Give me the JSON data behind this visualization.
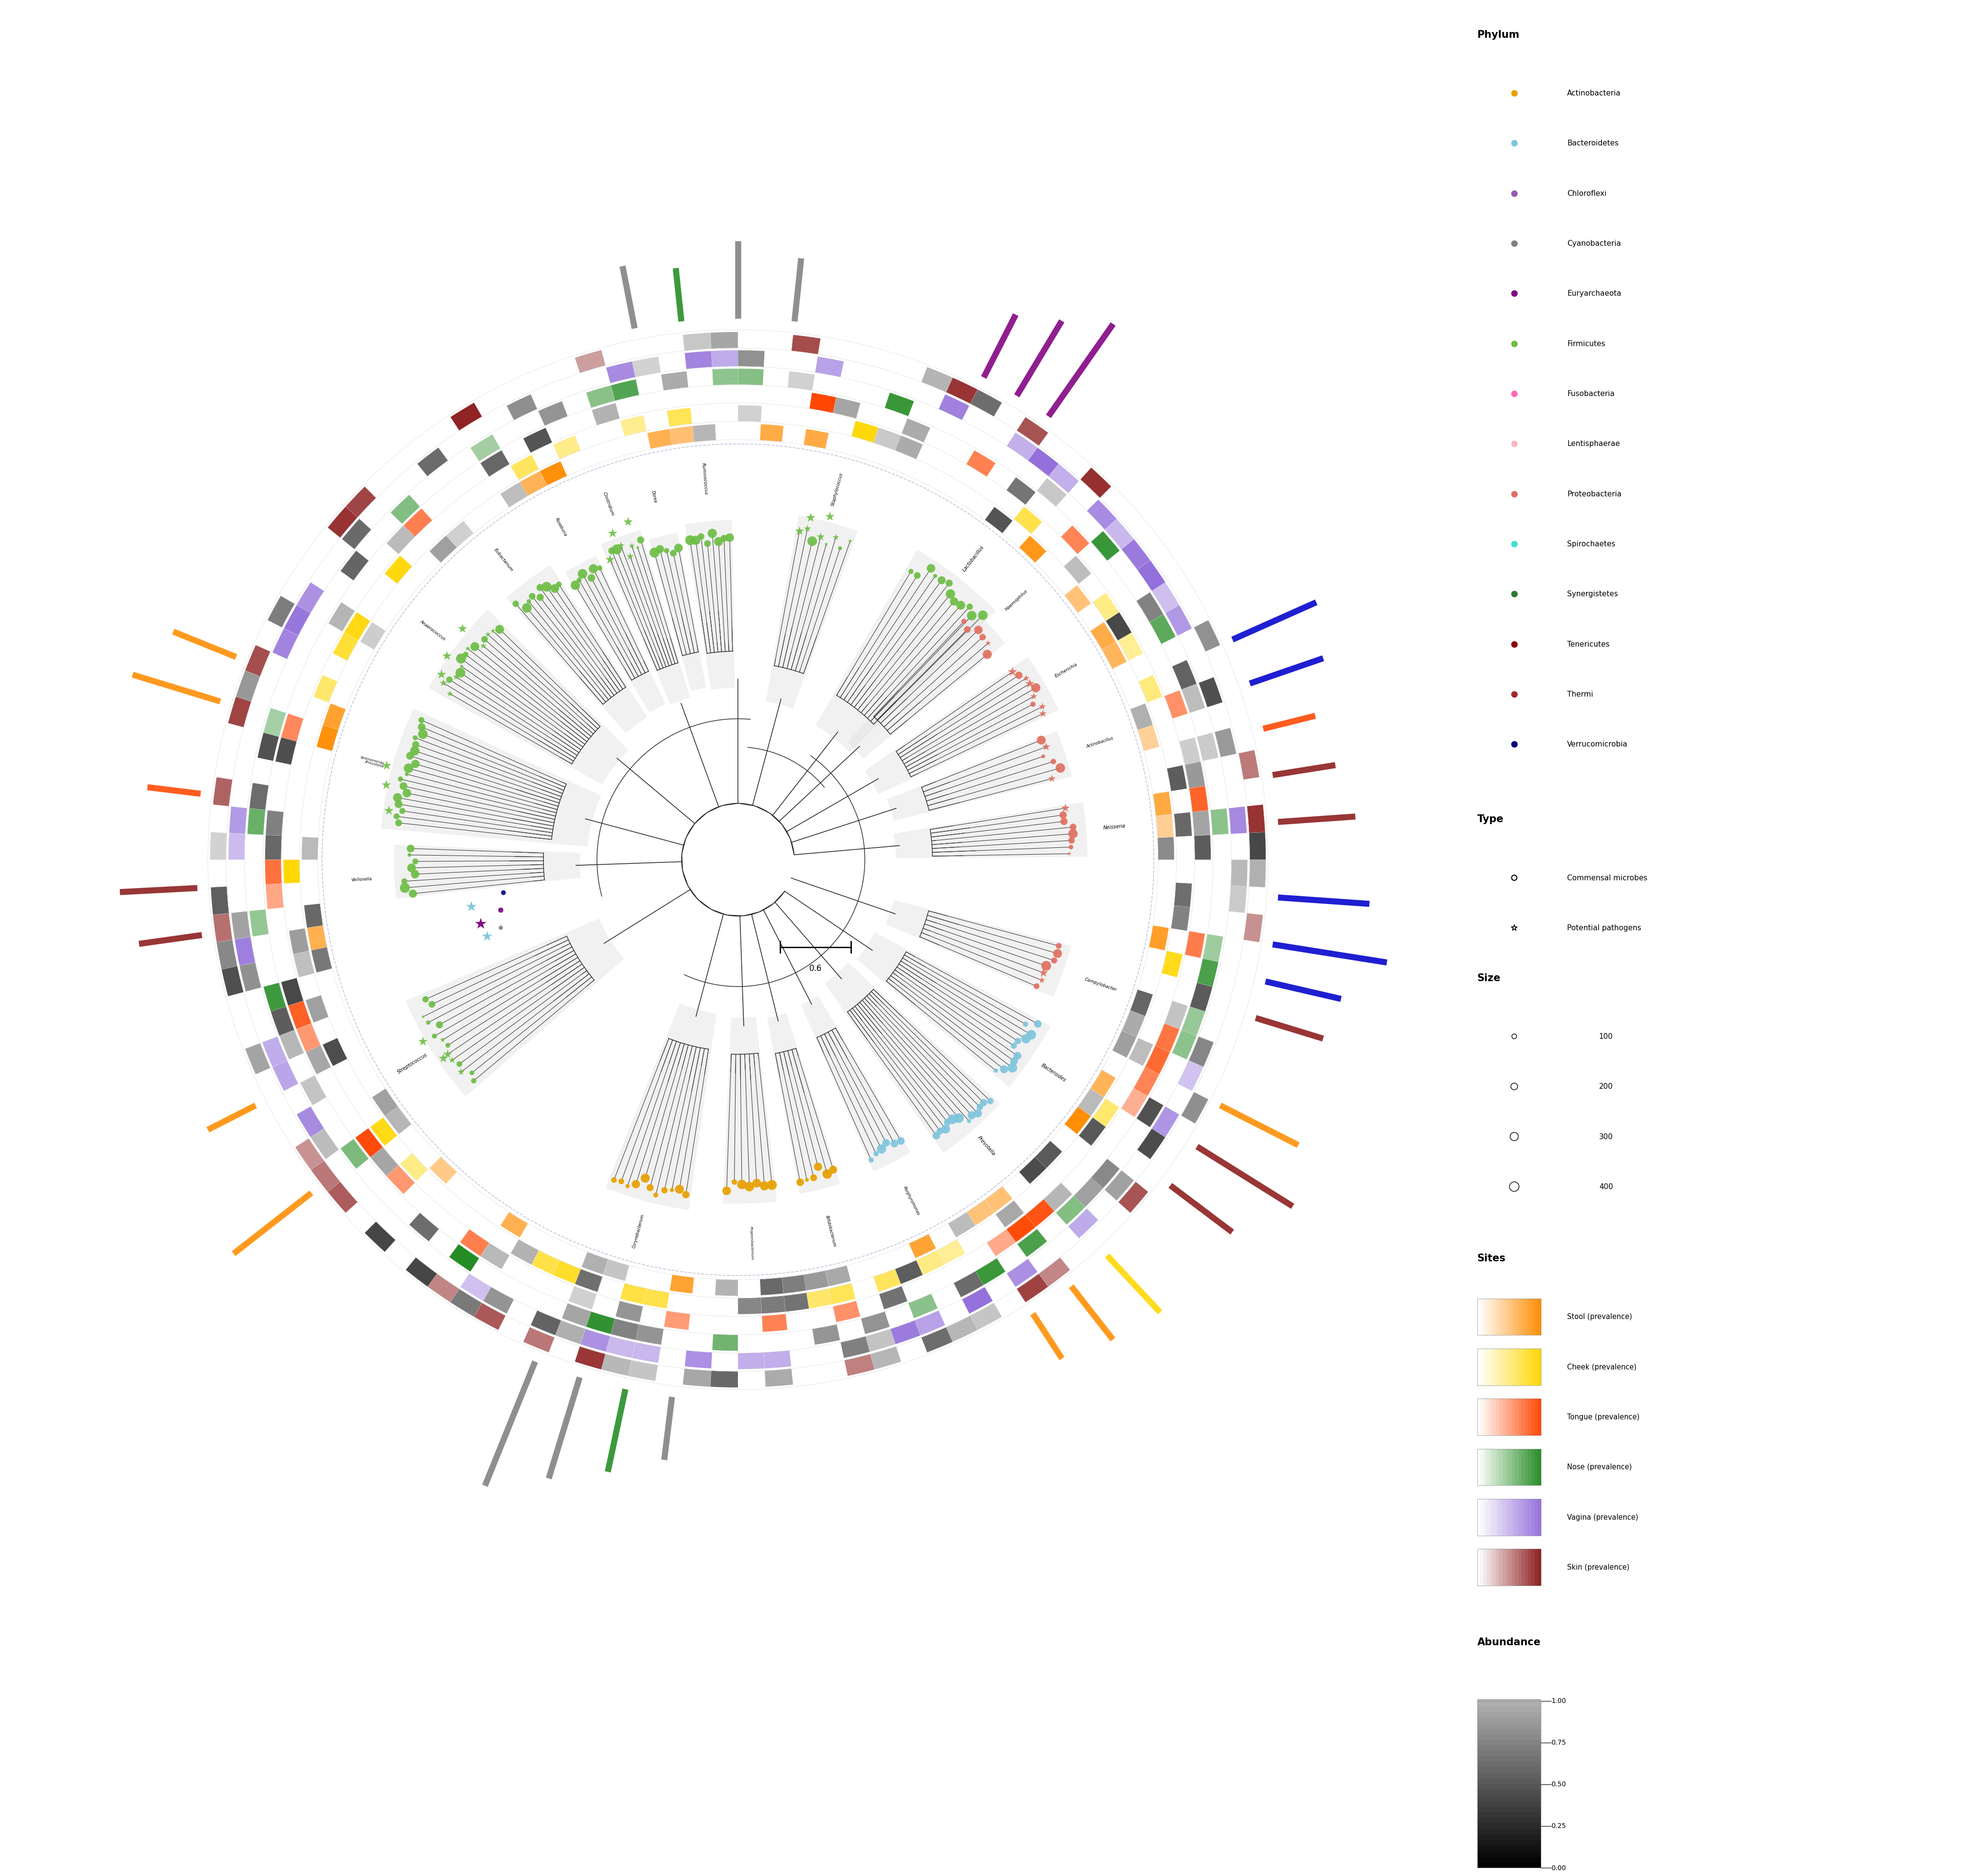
{
  "phyla": [
    {
      "name": "Actinobacteria",
      "color": "#E8A000"
    },
    {
      "name": "Bacteroidetes",
      "color": "#7FC5DC"
    },
    {
      "name": "Chloroflexi",
      "color": "#9B59B6"
    },
    {
      "name": "Cyanobacteria",
      "color": "#808080"
    },
    {
      "name": "Euryarchaeota",
      "color": "#800080"
    },
    {
      "name": "Firmicutes",
      "color": "#6DBE45"
    },
    {
      "name": "Fusobacteria",
      "color": "#FF69B4"
    },
    {
      "name": "Lentisphaerae",
      "color": "#FFB6C1"
    },
    {
      "name": "Proteobacteria",
      "color": "#E07060"
    },
    {
      "name": "Spirochaetes",
      "color": "#40E0D0"
    },
    {
      "name": "Synergistetes",
      "color": "#2D7A2D"
    },
    {
      "name": "Tenericutes",
      "color": "#8B0000"
    },
    {
      "name": "Thermi",
      "color": "#A52A2A"
    },
    {
      "name": "Verrucomicrobia",
      "color": "#000080"
    }
  ],
  "site_order": [
    "Stool",
    "Cheek",
    "Tongue",
    "Nose",
    "Vagina",
    "Skin"
  ],
  "site_colors": {
    "Stool": "#FF8C00",
    "Cheek": "#FFD700",
    "Tongue": "#FF4500",
    "Nose": "#228B22",
    "Vagina": "#9370DB",
    "Skin": "#8B1A1A"
  },
  "scale_bar_label": "0.6",
  "background_color": "#FFFFFF",
  "tree_color": "#222222",
  "outer_circle_color": "#AAAACC",
  "clades": [
    {
      "name": "Ruminococcus",
      "ca": 95,
      "span": 8,
      "phylum": "Firmicutes",
      "n": 8,
      "pat": false,
      "inner": 0.13,
      "outer": 0.235
    },
    {
      "name": "Dorea",
      "ca": 103,
      "span": 5,
      "phylum": "Firmicutes",
      "n": 5,
      "pat": false,
      "inner": 0.132,
      "outer": 0.23
    },
    {
      "name": "Clostridium",
      "ca": 110,
      "span": 7,
      "phylum": "Firmicutes",
      "n": 8,
      "pat": true,
      "inner": 0.128,
      "outer": 0.238
    },
    {
      "name": "Roseburia",
      "ca": 118,
      "span": 6,
      "phylum": "Firmicutes",
      "n": 6,
      "pat": false,
      "inner": 0.13,
      "outer": 0.232
    },
    {
      "name": "Eubacterium",
      "ca": 127,
      "span": 9,
      "phylum": "Firmicutes",
      "n": 9,
      "pat": false,
      "inner": 0.128,
      "outer": 0.242
    },
    {
      "name": "Anaerococcus",
      "ca": 143,
      "span": 16,
      "phylum": "Firmicutes",
      "n": 15,
      "pat": true,
      "inner": 0.118,
      "outer": 0.245
    },
    {
      "name": "Selenomonas",
      "ca": 165,
      "span": 20,
      "phylum": "Firmicutes",
      "n": 18,
      "pat": false,
      "inner": 0.115,
      "outer": 0.248
    },
    {
      "name": "Veillonella",
      "ca": 182,
      "span": 9,
      "phylum": "Firmicutes",
      "n": 8,
      "pat": false,
      "inner": 0.12,
      "outer": 0.238
    },
    {
      "name": "Streptococcus",
      "ca": 212,
      "span": 18,
      "phylum": "Firmicutes",
      "n": 14,
      "pat": true,
      "inner": 0.115,
      "outer": 0.25
    },
    {
      "name": "Staphylococcus",
      "ca": 75,
      "span": 10,
      "phylum": "Firmicutes",
      "n": 8,
      "pat": true,
      "inner": 0.122,
      "outer": 0.242
    },
    {
      "name": "Lactobacillus",
      "ca": 52,
      "span": 16,
      "phylum": "Firmicutes",
      "n": 12,
      "pat": false,
      "inner": 0.118,
      "outer": 0.248
    },
    {
      "name": "Corynebacterium",
      "ca": 255,
      "span": 14,
      "phylum": "Actinobacteria",
      "n": 11,
      "pat": false,
      "inner": 0.118,
      "outer": 0.245
    },
    {
      "name": "Propionibacterium",
      "ca": 272,
      "span": 9,
      "phylum": "Actinobacteria",
      "n": 7,
      "pat": false,
      "inner": 0.12,
      "outer": 0.238
    },
    {
      "name": "Bifidobacterium",
      "ca": 284,
      "span": 7,
      "phylum": "Actinobacteria",
      "n": 6,
      "pat": false,
      "inner": 0.122,
      "outer": 0.235
    },
    {
      "name": "Porphyromonas",
      "ca": 297,
      "span": 7,
      "phylum": "Bacteroidetes",
      "n": 6,
      "pat": false,
      "inner": 0.12,
      "outer": 0.235
    },
    {
      "name": "Prevotella",
      "ca": 311,
      "span": 12,
      "phylum": "Bacteroidetes",
      "n": 12,
      "pat": false,
      "inner": 0.115,
      "outer": 0.248
    },
    {
      "name": "Bacteroides",
      "ca": 326,
      "span": 12,
      "phylum": "Bacteroidetes",
      "n": 11,
      "pat": false,
      "inner": 0.118,
      "outer": 0.245
    },
    {
      "name": "Campylobacter",
      "ca": 341,
      "span": 9,
      "phylum": "Proteobacteria",
      "n": 7,
      "pat": true,
      "inner": 0.122,
      "outer": 0.238
    },
    {
      "name": "Neisseria",
      "ca": 5,
      "span": 9,
      "phylum": "Proteobacteria",
      "n": 8,
      "pat": true,
      "inner": 0.12,
      "outer": 0.242
    },
    {
      "name": "Actinobacillus",
      "ca": 18,
      "span": 8,
      "phylum": "Proteobacteria",
      "n": 6,
      "pat": true,
      "inner": 0.122,
      "outer": 0.238
    },
    {
      "name": "Escherichia",
      "ca": 30,
      "span": 10,
      "phylum": "Proteobacteria",
      "n": 9,
      "pat": true,
      "inner": 0.118,
      "outer": 0.245
    },
    {
      "name": "Haemophilus",
      "ca": 43,
      "span": 8,
      "phylum": "Proteobacteria",
      "n": 6,
      "pat": true,
      "inner": 0.122,
      "outer": 0.238
    }
  ],
  "special_stars": [
    [
      0.252,
      108,
      "#6DBE45"
    ],
    [
      0.248,
      111,
      "#6DBE45"
    ],
    [
      0.255,
      140,
      "#6DBE45"
    ],
    [
      0.252,
      145,
      "#6DBE45"
    ],
    [
      0.248,
      148,
      "#6DBE45"
    ],
    [
      0.258,
      165,
      "#6DBE45"
    ],
    [
      0.255,
      168,
      "#6DBE45"
    ],
    [
      0.25,
      172,
      "#6DBE45"
    ],
    [
      0.258,
      210,
      "#6DBE45"
    ],
    [
      0.252,
      214,
      "#6DBE45"
    ],
    [
      0.252,
      75,
      "#6DBE45"
    ],
    [
      0.248,
      78,
      "#6DBE45"
    ]
  ],
  "euryarch_stars": [
    [
      0.188,
      194,
      "#800080",
      320
    ],
    [
      0.192,
      190,
      "#7FC5DC",
      280
    ],
    [
      0.186,
      197,
      "#7FC5DC",
      260
    ]
  ],
  "small_dots": [
    [
      0.172,
      192,
      "#800080",
      60
    ],
    [
      0.168,
      188,
      "#000080",
      50
    ],
    [
      0.175,
      196,
      "#808080",
      40
    ]
  ],
  "bar_positions": [
    [
      55,
      0.08,
      "#800080"
    ],
    [
      59,
      0.062,
      "#800080"
    ],
    [
      63,
      0.05,
      "#800080"
    ],
    [
      248,
      0.095,
      "#808080"
    ],
    [
      253,
      0.075,
      "#808080"
    ],
    [
      258,
      0.06,
      "#228B22"
    ],
    [
      263,
      0.045,
      "#808080"
    ],
    [
      207,
      0.038,
      "#FF8C00"
    ],
    [
      218,
      0.07,
      "#FF8C00"
    ],
    [
      323,
      0.055,
      "#8B1A1A"
    ],
    [
      328,
      0.08,
      "#8B1A1A"
    ],
    [
      333,
      0.062,
      "#FF8C00"
    ],
    [
      343,
      0.05,
      "#8B1A1A"
    ],
    [
      347,
      0.055,
      "#0000CC"
    ],
    [
      351,
      0.082,
      "#0000CC"
    ],
    [
      356,
      0.065,
      "#0000CC"
    ],
    [
      4,
      0.055,
      "#8B1A1A"
    ],
    [
      9,
      0.045,
      "#8B1A1A"
    ],
    [
      14,
      0.038,
      "#FF4500"
    ],
    [
      19,
      0.055,
      "#0000CC"
    ],
    [
      24,
      0.065,
      "#0000CC"
    ],
    [
      84,
      0.045,
      "#808080"
    ],
    [
      90,
      0.055,
      "#808080"
    ],
    [
      96,
      0.038,
      "#228B22"
    ],
    [
      101,
      0.045,
      "#808080"
    ],
    [
      158,
      0.048,
      "#FF8C00"
    ],
    [
      163,
      0.065,
      "#FF8C00"
    ],
    [
      173,
      0.038,
      "#FF4500"
    ],
    [
      183,
      0.055,
      "#8B1A1A"
    ],
    [
      188,
      0.045,
      "#8B1A1A"
    ],
    [
      303,
      0.038,
      "#FF8C00"
    ],
    [
      308,
      0.048,
      "#FF8C00"
    ],
    [
      313,
      0.055,
      "#FFD700"
    ]
  ],
  "clade_labels": [
    [
      "Ruminococcus",
      95,
      11
    ],
    [
      "Dorea",
      103,
      10
    ],
    [
      "Clostridium",
      110,
      11
    ],
    [
      "Roseburia",
      118,
      10
    ],
    [
      "Eubacterium",
      128,
      11
    ],
    [
      "Anaerococcus",
      143,
      11
    ],
    [
      "Selenomonas\n/Prevotella",
      165,
      9
    ],
    [
      "Veillonella",
      183,
      10
    ],
    [
      "Streptococcus",
      212,
      12
    ],
    [
      "Staphylococcus",
      75,
      11
    ],
    [
      "Lactobacillus",
      52,
      12
    ],
    [
      "Corynebacterium",
      255,
      10
    ],
    [
      "Propionibacterium",
      272,
      9
    ],
    [
      "Bifidobacterium",
      284,
      10
    ],
    [
      "Porphyromonas",
      297,
      10
    ],
    [
      "Prevotella",
      311,
      12
    ],
    [
      "Bacteroides",
      326,
      12
    ],
    [
      "Campylobacter",
      341,
      11
    ],
    [
      "Neisseria",
      5,
      12
    ],
    [
      "Actinobacillus",
      18,
      10
    ],
    [
      "Escherichia",
      30,
      11
    ],
    [
      "Haemophilus",
      43,
      11
    ]
  ]
}
